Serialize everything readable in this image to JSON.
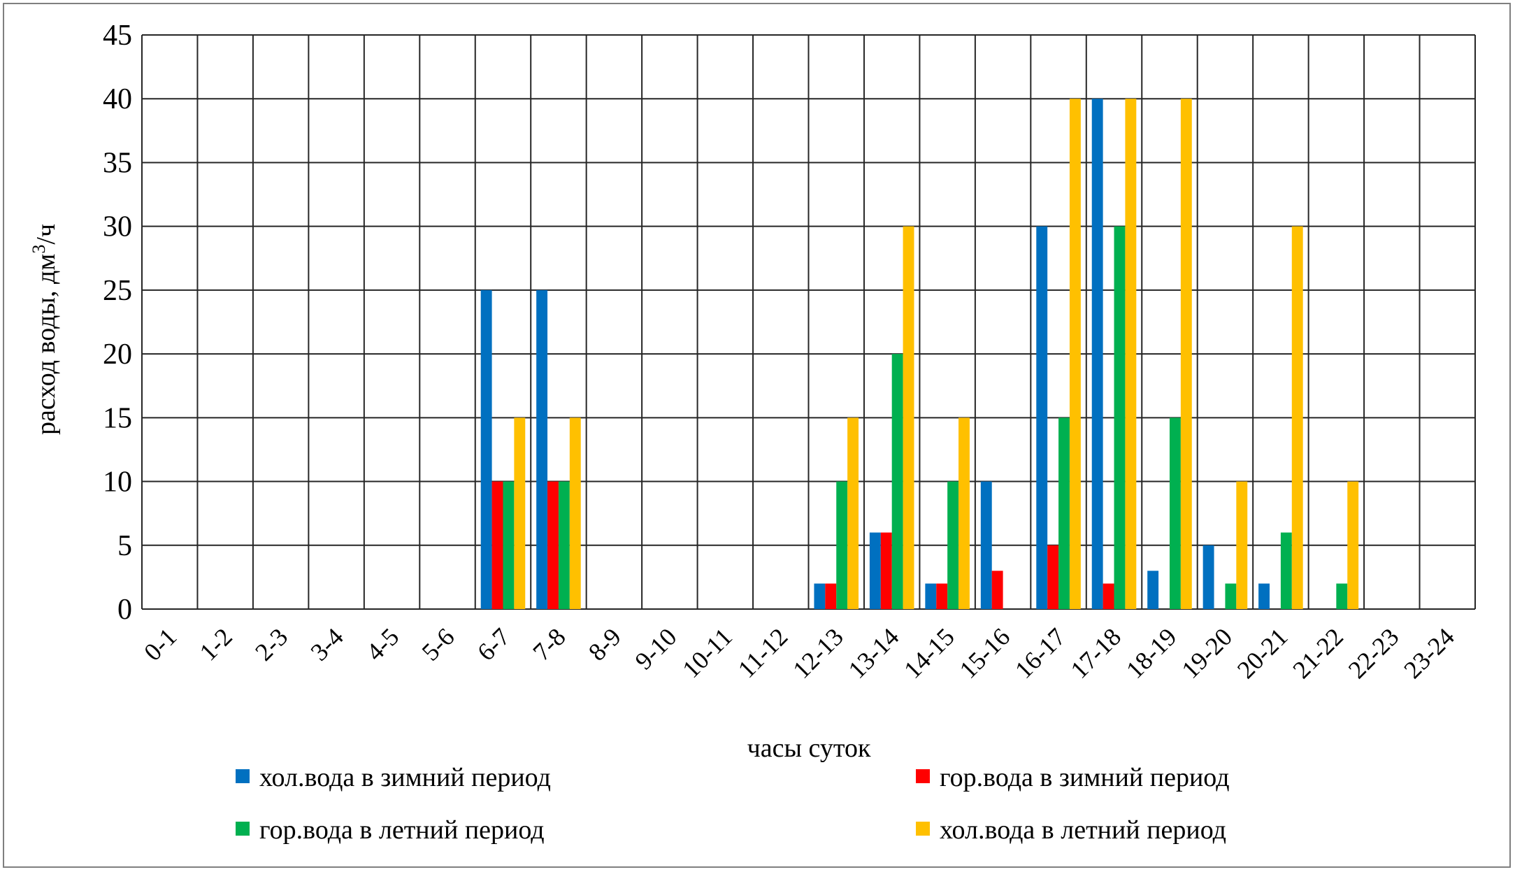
{
  "chart_data": {
    "type": "bar",
    "xlabel": "часы суток",
    "ylabel_main": "расход воды, дм",
    "ylabel_sup": "3",
    "ylabel_tail": "/ч",
    "ylim": [
      0,
      45
    ],
    "yticks": [
      0,
      5,
      10,
      15,
      20,
      25,
      30,
      35,
      40,
      45
    ],
    "grid": true,
    "legend_position": "bottom",
    "categories": [
      "0-1",
      "1-2",
      "2-3",
      "3-4",
      "4-5",
      "5-6",
      "6-7",
      "7-8",
      "8-9",
      "9-10",
      "10-11",
      "11-12",
      "12-13",
      "13-14",
      "14-15",
      "15-16",
      "16-17",
      "17-18",
      "18-19",
      "19-20",
      "20-21",
      "21-22",
      "22-23",
      "23-24"
    ],
    "series": [
      {
        "name": "хол.вода в зимний период",
        "color": "#0070C0",
        "values": [
          0,
          0,
          0,
          0,
          0,
          0,
          25,
          25,
          0,
          0,
          0,
          0,
          2,
          6,
          2,
          10,
          30,
          40,
          3,
          5,
          2,
          0,
          0,
          0
        ]
      },
      {
        "name": "гор.вода в зимний период",
        "color": "#FF0000",
        "values": [
          0,
          0,
          0,
          0,
          0,
          0,
          10,
          10,
          0,
          0,
          0,
          0,
          2,
          6,
          2,
          3,
          5,
          2,
          0,
          0,
          0,
          0,
          0,
          0
        ]
      },
      {
        "name": "гор.вода в летний период",
        "color": "#00B050",
        "values": [
          0,
          0,
          0,
          0,
          0,
          0,
          10,
          10,
          0,
          0,
          0,
          0,
          10,
          20,
          10,
          0,
          15,
          30,
          15,
          2,
          6,
          2,
          0,
          0
        ]
      },
      {
        "name": "хол.вода в летний период",
        "color": "#FFC000",
        "values": [
          0,
          0,
          0,
          0,
          0,
          0,
          15,
          15,
          0,
          0,
          0,
          0,
          15,
          30,
          15,
          0,
          40,
          40,
          40,
          10,
          30,
          10,
          0,
          0
        ]
      }
    ]
  }
}
